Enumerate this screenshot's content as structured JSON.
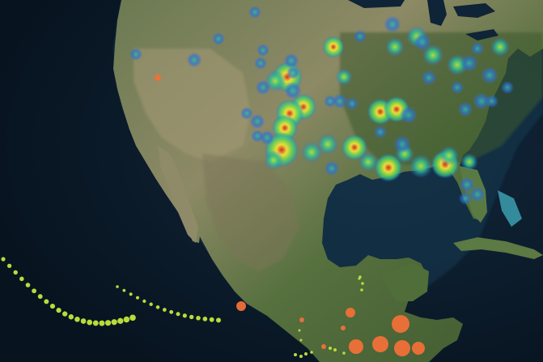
{
  "map": {
    "basemap": "satellite-imagery",
    "region": "north-america",
    "colors": {
      "ocean_deep": "#0b1a2a",
      "ocean_shelf": "#1e4e66",
      "shallow_reef": "#3fa6b8",
      "land_green": "#4f6a3a",
      "land_forest": "#3f5a30",
      "land_desert": "#a49a74",
      "land_mountain": "#6f6a55",
      "heat_low": "#2f6fd6",
      "heat_mid_low": "#2fbf8f",
      "heat_mid": "#b6e13a",
      "heat_high": "#f0e23a",
      "heat_max": "#d8281f",
      "track_point": "#b8dc3a",
      "event_bubble": "#f07038"
    }
  },
  "layers": {
    "heatmap": {
      "type": "heatmap",
      "color_ramp": [
        "#2f6fd6",
        "#2fbf8f",
        "#b6e13a",
        "#f0e23a",
        "#d8281f"
      ],
      "hotspots": [
        {
          "region": "oklahoma",
          "intensity": 1.0
        },
        {
          "region": "north-texas",
          "intensity": 1.0
        },
        {
          "region": "kansas",
          "intensity": 0.85
        },
        {
          "region": "louisiana",
          "intensity": 0.95
        },
        {
          "region": "mississippi",
          "intensity": 0.9
        },
        {
          "region": "alabama",
          "intensity": 0.9
        },
        {
          "region": "tennessee",
          "intensity": 0.9
        },
        {
          "region": "georgia",
          "intensity": 0.8
        },
        {
          "region": "iowa",
          "intensity": 0.7
        },
        {
          "region": "illinois",
          "intensity": 0.65
        },
        {
          "region": "florida-panhandle",
          "intensity": 0.75
        }
      ]
    },
    "storm_tracks": {
      "type": "point-track",
      "color": "#b8dc3a",
      "tracks": [
        "pacific-west",
        "pacific-east",
        "gulf-of-tehuantepec",
        "yucatan"
      ]
    },
    "events": {
      "type": "proportional-symbol",
      "color": "#f07038",
      "sizes": [
        6,
        3,
        3,
        11,
        10,
        8,
        6,
        10,
        4,
        9,
        3
      ]
    }
  }
}
